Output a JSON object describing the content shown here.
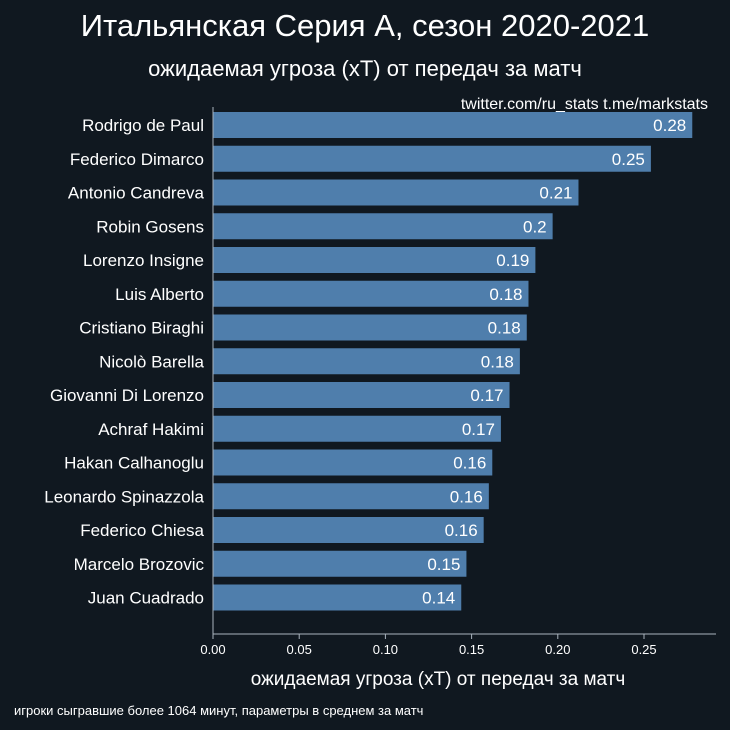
{
  "title": "Итальянская Серия А, сезон 2020-2021",
  "subtitle": "ожидаемая угроза (xT) от передач за матч",
  "watermark": "twitter.com/ru_stats  t.me/markstats",
  "footnote": "игроки сыгравшие более 1064 минут, параметры в среднем за матч",
  "colors": {
    "background": "#101820",
    "bar": "#4f7eac",
    "text": "#ffffff",
    "axis": "#aab4be"
  },
  "chart_data": {
    "type": "bar",
    "orientation": "horizontal",
    "title": "Итальянская Серия А, сезон 2020-2021",
    "subtitle": "ожидаемая угроза (xT) от передач за матч",
    "xlabel": "ожидаемая угроза (xT) от передач за матч",
    "ylabel": "",
    "xlim": [
      0,
      0.29
    ],
    "xticks": [
      "0.00",
      "0.05",
      "0.10",
      "0.15",
      "0.20",
      "0.25"
    ],
    "categories": [
      "Rodrigo de Paul",
      "Federico Dimarco",
      "Antonio Candreva",
      "Robin Gosens",
      "Lorenzo Insigne",
      "Luis Alberto",
      "Cristiano Biraghi",
      "Nicolò Barella",
      "Giovanni Di Lorenzo",
      "Achraf Hakimi",
      "Hakan Calhanoglu",
      "Leonardo Spinazzola",
      "Federico Chiesa",
      "Marcelo Brozovic",
      "Juan Cuadrado"
    ],
    "values": [
      0.278,
      0.254,
      0.212,
      0.197,
      0.187,
      0.183,
      0.182,
      0.178,
      0.172,
      0.167,
      0.162,
      0.16,
      0.157,
      0.147,
      0.144
    ],
    "value_labels": [
      "0.28",
      "0.25",
      "0.21",
      "0.2",
      "0.19",
      "0.18",
      "0.18",
      "0.18",
      "0.17",
      "0.17",
      "0.16",
      "0.16",
      "0.16",
      "0.15",
      "0.14"
    ],
    "grid": false,
    "legend": "none"
  }
}
